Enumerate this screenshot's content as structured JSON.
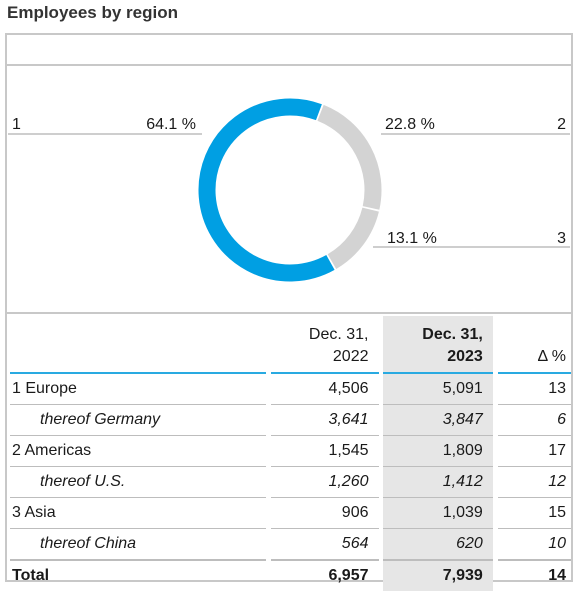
{
  "title": "Employees by region",
  "chart_data": {
    "type": "pie",
    "slices": [
      {
        "label": "1",
        "pct_label": "64.1 %",
        "value": 64.1,
        "color": "#009fe3"
      },
      {
        "label": "2",
        "pct_label": "22.8 %",
        "value": 22.8,
        "color": "#d3d3d3"
      },
      {
        "label": "3",
        "pct_label": "13.1 %",
        "value": 13.1,
        "color": "#d3d3d3"
      }
    ]
  },
  "table": {
    "headers": {
      "col1_line1": "Dec. 31,",
      "col1_line2": "2022",
      "col2_line1": "Dec. 31,",
      "col2_line2": "2023",
      "delta": "Δ %"
    },
    "rows": [
      {
        "label": "1 Europe",
        "v2022": "4,506",
        "v2023": "5,091",
        "delta": "13"
      },
      {
        "label": "thereof Germany",
        "v2022": "3,641",
        "v2023": "3,847",
        "delta": "6"
      },
      {
        "label": "2 Americas",
        "v2022": "1,545",
        "v2023": "1,809",
        "delta": "17"
      },
      {
        "label": "thereof U.S.",
        "v2022": "1,260",
        "v2023": "1,412",
        "delta": "12"
      },
      {
        "label": "3 Asia",
        "v2022": "906",
        "v2023": "1,039",
        "delta": "15"
      },
      {
        "label": "thereof China",
        "v2022": "564",
        "v2023": "620",
        "delta": "10"
      },
      {
        "label": "Total",
        "v2022": "6,957",
        "v2023": "7,939",
        "delta": "14"
      }
    ]
  }
}
